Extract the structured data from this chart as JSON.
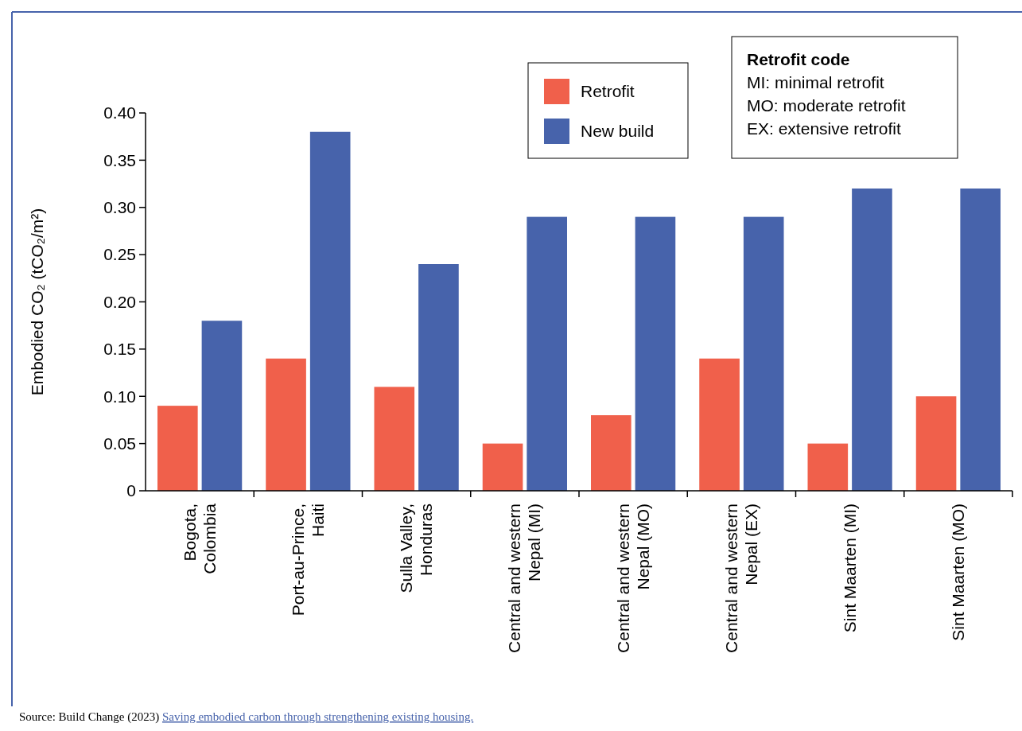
{
  "chart_data": {
    "type": "bar",
    "ylabel": "Embodied CO₂ (tCO₂/m²)",
    "categories": [
      "Bogota,\nColombia",
      "Port-au-Prince,\nHaiti",
      "Sulla Valley,\nHonduras",
      "Central and western\nNepal (MI)",
      "Central and western\nNepal (MO)",
      "Central and western\nNepal (EX)",
      "Sint Maarten (MI)",
      "Sint Maarten (MO)"
    ],
    "series": [
      {
        "name": "Retrofit",
        "color": "#f0604b",
        "values": [
          0.09,
          0.14,
          0.11,
          0.05,
          0.08,
          0.14,
          0.05,
          0.1
        ]
      },
      {
        "name": "New build",
        "color": "#4763ab",
        "values": [
          0.18,
          0.38,
          0.24,
          0.29,
          0.29,
          0.29,
          0.32,
          0.32
        ]
      }
    ],
    "ylim": [
      0,
      0.4
    ],
    "yticks": [
      {
        "value": 0,
        "label": "0"
      },
      {
        "value": 0.05,
        "label": "0.05"
      },
      {
        "value": 0.1,
        "label": "0.10"
      },
      {
        "value": 0.15,
        "label": "0.15"
      },
      {
        "value": 0.2,
        "label": "0.20"
      },
      {
        "value": 0.25,
        "label": "0.25"
      },
      {
        "value": 0.3,
        "label": "0.30"
      },
      {
        "value": 0.35,
        "label": "0.35"
      },
      {
        "value": 0.4,
        "label": "0.40"
      }
    ],
    "legend": "top right",
    "grid": false,
    "annotations": [
      "Retrofit code",
      "MI: minimal retrofit",
      "MO: moderate retrofit",
      "EX: extensive retrofit",
      "Source: Build Change (2023)",
      "Saving embodied carbon through strengthening existing housing."
    ]
  }
}
